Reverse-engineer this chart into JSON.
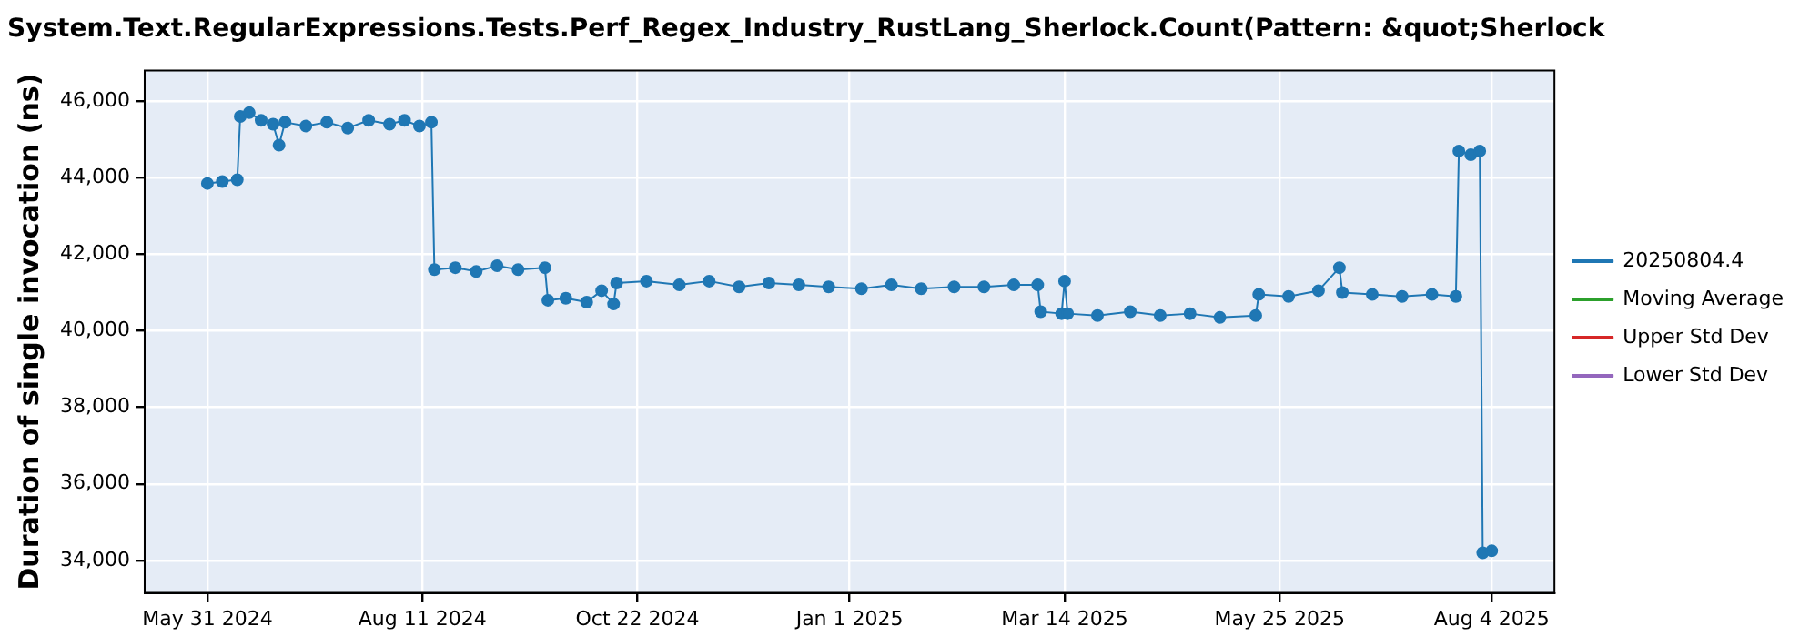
{
  "chart_data": {
    "type": "line",
    "title": "System.Text.RegularExpressions.Tests.Perf_Regex_Industry_RustLang_Sherlock.Count(Pattern: &quot;Sherlock",
    "ylabel": "Duration of single invocation (ns)",
    "x": [
      "2024-05-31",
      "2024-06-05",
      "2024-06-10",
      "2024-06-11",
      "2024-06-14",
      "2024-06-18",
      "2024-06-22",
      "2024-06-24",
      "2024-06-26",
      "2024-07-03",
      "2024-07-10",
      "2024-07-17",
      "2024-07-24",
      "2024-07-31",
      "2024-08-05",
      "2024-08-10",
      "2024-08-14",
      "2024-08-15",
      "2024-08-22",
      "2024-08-29",
      "2024-09-05",
      "2024-09-12",
      "2024-09-21",
      "2024-09-22",
      "2024-09-28",
      "2024-10-05",
      "2024-10-10",
      "2024-10-14",
      "2024-10-15",
      "2024-10-25",
      "2024-11-05",
      "2024-11-15",
      "2024-11-25",
      "2024-12-05",
      "2024-12-15",
      "2024-12-25",
      "2025-01-05",
      "2025-01-15",
      "2025-01-25",
      "2025-02-05",
      "2025-02-15",
      "2025-02-25",
      "2025-03-05",
      "2025-03-06",
      "2025-03-13",
      "2025-03-14",
      "2025-03-15",
      "2025-03-25",
      "2025-04-05",
      "2025-04-15",
      "2025-04-25",
      "2025-05-05",
      "2025-05-17",
      "2025-05-18",
      "2025-05-28",
      "2025-06-07",
      "2025-06-14",
      "2025-06-15",
      "2025-06-25",
      "2025-07-05",
      "2025-07-15",
      "2025-07-23",
      "2025-07-24",
      "2025-07-28",
      "2025-07-31",
      "2025-08-01",
      "2025-08-04"
    ],
    "series": [
      {
        "name": "20250804.4",
        "color": "#1f77b4",
        "values": [
          43850,
          43900,
          43950,
          45600,
          45700,
          45500,
          45400,
          44850,
          45450,
          45350,
          45450,
          45300,
          45500,
          45400,
          45500,
          45350,
          45450,
          41600,
          41650,
          41550,
          41700,
          41600,
          41650,
          40800,
          40850,
          40750,
          41050,
          40700,
          41250,
          41300,
          41200,
          41300,
          41150,
          41250,
          41200,
          41150,
          41100,
          41200,
          41100,
          41150,
          41150,
          41200,
          41200,
          40500,
          40450,
          41300,
          40450,
          40400,
          40500,
          40400,
          40450,
          40350,
          40400,
          40950,
          40900,
          41050,
          41650,
          41000,
          40950,
          40900,
          40950,
          40900,
          44700,
          44600,
          44700,
          34200,
          34250
        ]
      },
      {
        "name": "Moving Average",
        "color": "#2ca02c",
        "values": [
          null,
          null,
          null,
          null,
          null,
          null,
          null,
          null,
          null,
          null,
          null,
          null,
          null,
          null,
          null,
          null,
          null,
          null,
          null,
          null,
          null,
          null,
          null,
          null,
          null,
          null,
          null,
          null,
          null,
          null,
          null,
          null,
          null,
          null,
          null,
          null,
          null,
          null,
          null,
          null,
          null,
          null,
          null,
          null,
          null,
          null,
          null,
          null,
          null,
          null,
          null,
          null,
          null,
          null,
          null,
          null,
          null,
          null,
          null,
          null,
          null,
          null,
          null,
          null,
          null,
          null,
          null
        ]
      },
      {
        "name": "Upper Std Dev",
        "color": "#d62728",
        "values": [
          null,
          null,
          null,
          null,
          null,
          null,
          null,
          null,
          null,
          null,
          null,
          null,
          null,
          null,
          null,
          null,
          null,
          null,
          null,
          null,
          null,
          null,
          null,
          null,
          null,
          null,
          null,
          null,
          null,
          null,
          null,
          null,
          null,
          null,
          null,
          null,
          null,
          null,
          null,
          null,
          null,
          null,
          null,
          null,
          null,
          null,
          null,
          null,
          null,
          null,
          null,
          null,
          null,
          null,
          null,
          null,
          null,
          null,
          null,
          null,
          null,
          null,
          null,
          null,
          null,
          null,
          null
        ]
      },
      {
        "name": "Lower Std Dev",
        "color": "#9467bd",
        "values": [
          null,
          null,
          null,
          null,
          null,
          null,
          null,
          null,
          null,
          null,
          null,
          null,
          null,
          null,
          null,
          null,
          null,
          null,
          null,
          null,
          null,
          null,
          null,
          null,
          null,
          null,
          null,
          null,
          null,
          null,
          null,
          null,
          null,
          null,
          null,
          null,
          null,
          null,
          null,
          null,
          null,
          null,
          null,
          null,
          null,
          null,
          null,
          null,
          null,
          null,
          null,
          null,
          null,
          null,
          null,
          null,
          null,
          null,
          null,
          null,
          null,
          null,
          null,
          null,
          null,
          null,
          null
        ]
      }
    ],
    "xlim": [
      "2024-05-10",
      "2025-08-25"
    ],
    "xticks": [
      {
        "value": "2024-05-31",
        "label": "May 31 2024"
      },
      {
        "value": "2024-08-11",
        "label": "Aug 11 2024"
      },
      {
        "value": "2024-10-22",
        "label": "Oct 22 2024"
      },
      {
        "value": "2025-01-01",
        "label": "Jan 1 2025"
      },
      {
        "value": "2025-03-14",
        "label": "Mar 14 2025"
      },
      {
        "value": "2025-05-25",
        "label": "May 25 2025"
      },
      {
        "value": "2025-08-04",
        "label": "Aug 4 2025"
      }
    ],
    "ylim": [
      33150,
      46800
    ],
    "yticks": [
      {
        "value": 34000,
        "label": "34,000"
      },
      {
        "value": 36000,
        "label": "36,000"
      },
      {
        "value": 38000,
        "label": "38,000"
      },
      {
        "value": 40000,
        "label": "40,000"
      },
      {
        "value": 42000,
        "label": "42,000"
      },
      {
        "value": 44000,
        "label": "44,000"
      },
      {
        "value": 46000,
        "label": "46,000"
      }
    ],
    "grid": true,
    "legend": "right",
    "marker": "circle",
    "line_style": "solid"
  }
}
